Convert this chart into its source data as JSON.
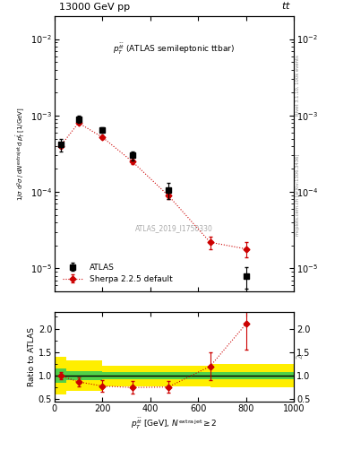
{
  "atlas_x": [
    25,
    100,
    200,
    325,
    475,
    800
  ],
  "atlas_y": [
    0.00042,
    0.0009,
    0.00065,
    0.0003,
    0.000105,
    8e-06
  ],
  "atlas_yerr_lo": [
    8e-05,
    0.0001,
    6e-05,
    4e-05,
    2.5e-05,
    2.5e-06
  ],
  "atlas_yerr_hi": [
    8e-05,
    0.0001,
    6e-05,
    4e-05,
    2.5e-05,
    2.5e-06
  ],
  "sherpa_x": [
    25,
    100,
    200,
    325,
    475,
    650,
    800
  ],
  "sherpa_y": [
    0.0004,
    0.0008,
    0.00052,
    0.00025,
    9e-05,
    2.2e-05,
    1.8e-05
  ],
  "sherpa_yerr_lo": [
    2e-05,
    2.5e-05,
    2e-05,
    1.5e-05,
    1e-05,
    4e-06,
    4e-06
  ],
  "sherpa_yerr_hi": [
    2e-05,
    2.5e-05,
    2e-05,
    1.5e-05,
    1e-05,
    4e-06,
    4e-06
  ],
  "ratio_x": [
    25,
    100,
    200,
    325,
    475,
    650,
    800
  ],
  "ratio_y": [
    1.0,
    0.87,
    0.78,
    0.75,
    0.76,
    1.2,
    2.1
  ],
  "ratio_yerr_lo": [
    0.08,
    0.1,
    0.12,
    0.13,
    0.12,
    0.3,
    0.55
  ],
  "ratio_yerr_hi": [
    0.08,
    0.1,
    0.12,
    0.13,
    0.12,
    0.3,
    0.55
  ],
  "band_edges": [
    0,
    50,
    200,
    450,
    650,
    1000
  ],
  "band_green_lo": [
    0.85,
    0.9,
    0.92,
    0.92,
    0.92,
    0.92
  ],
  "band_green_hi": [
    1.15,
    1.1,
    1.08,
    1.08,
    1.08,
    1.08
  ],
  "band_yellow_lo": [
    0.6,
    0.68,
    0.78,
    0.78,
    0.75,
    0.75
  ],
  "band_yellow_hi": [
    1.4,
    1.32,
    1.22,
    1.22,
    1.25,
    1.25
  ],
  "xlim": [
    0,
    1000
  ],
  "ylim_main": [
    5e-06,
    0.02
  ],
  "ylim_ratio": [
    0.45,
    2.35
  ],
  "yticks_ratio": [
    0.5,
    1.0,
    1.5,
    2.0
  ],
  "color_atlas": "#000000",
  "color_sherpa": "#cc0000",
  "color_green": "#33cc55",
  "color_yellow": "#ffee00",
  "background": "#ffffff",
  "title_left": "13000 GeV pp",
  "title_right": "tt̅",
  "top_annotation": "p$_T^{\\bar{t}\\bar{t}}$ (ATLAS semileptonic ttbar)",
  "watermark": "ATLAS_2019_I1750330",
  "right_label1": "Rivet 3.1.10, 100k events",
  "right_label2": "mcplots.cern.ch [arXiv:1306.3436]",
  "ylabel_main": "1/σ d²σ / d N$^{\\mathrm{extra\\,jet}}$ d p$_T^{\\bar{t}}$ [1/GeV]",
  "ylabel_ratio": "Ratio to ATLAS",
  "xlabel": "p$_T^{\\bar{t}\\{t\\}}$ [GeV], N$^{\\mathrm{extra\\,jet}}$ $\\geq$ 2"
}
